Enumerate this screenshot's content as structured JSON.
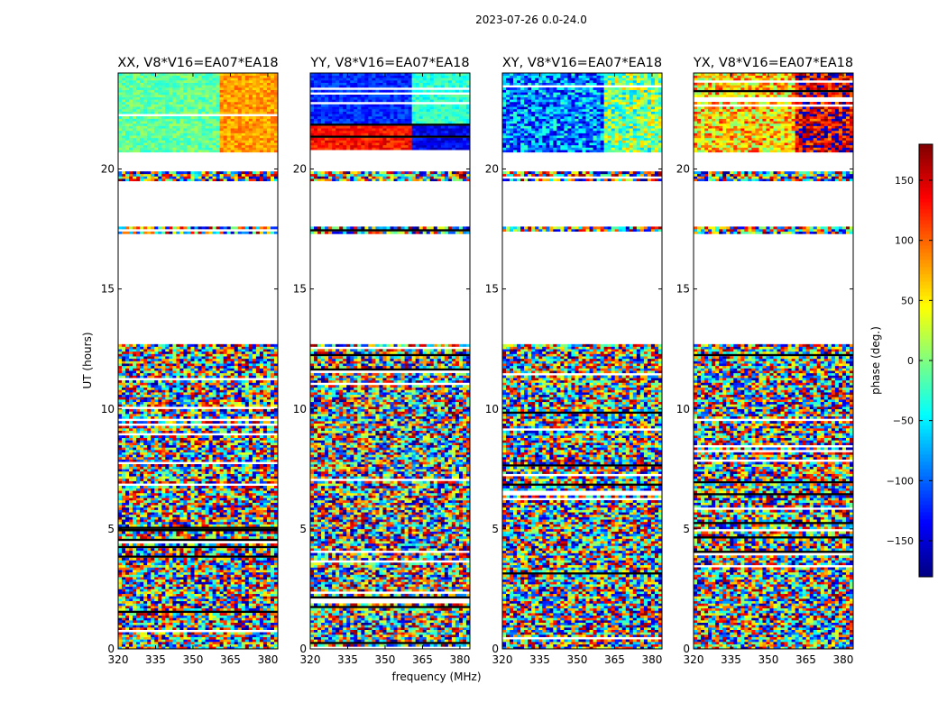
{
  "suptitle": "2023-07-26 0.0-24.0",
  "chart_data": {
    "type": "heatmap",
    "title": "2023-07-26 0.0-24.0",
    "xlabel": "frequency (MHz)",
    "ylabel": "UT (hours)",
    "xlim": [
      320,
      384
    ],
    "ylim": [
      0,
      24
    ],
    "xticks": [
      320,
      335,
      350,
      365,
      380
    ],
    "yticks": [
      0,
      5,
      10,
      15,
      20
    ],
    "panels": [
      {
        "title": "XX, V8*V16=EA07*EA18",
        "pol": "XX"
      },
      {
        "title": "YY, V8*V16=EA07*EA18",
        "pol": "YY"
      },
      {
        "title": "XY, V8*V16=EA07*EA18",
        "pol": "XY"
      },
      {
        "title": "YX, V8*V16=EA07*EA18",
        "pol": "YX"
      }
    ],
    "colorbar": {
      "label": "phase (deg.)",
      "range": [
        -180,
        180
      ],
      "ticks": [
        -150,
        -100,
        -50,
        0,
        50,
        100,
        150
      ],
      "tick_labels": [
        "−150",
        "−100",
        "−50",
        "0",
        "50",
        "100",
        "150"
      ],
      "colormap": "jet"
    },
    "data_gaps_hours": [
      [
        12.7,
        17.3
      ],
      [
        17.6,
        19.5
      ],
      [
        19.9,
        20.7
      ]
    ],
    "noisy_range_hours": [
      0,
      12.7
    ],
    "coherent_range_hours": [
      20.7,
      24
    ]
  },
  "colors": {
    "background": "#ffffff",
    "axes": "#000000",
    "jet_dark_blue": "#00007f",
    "jet_dark_red": "#7f0000"
  }
}
